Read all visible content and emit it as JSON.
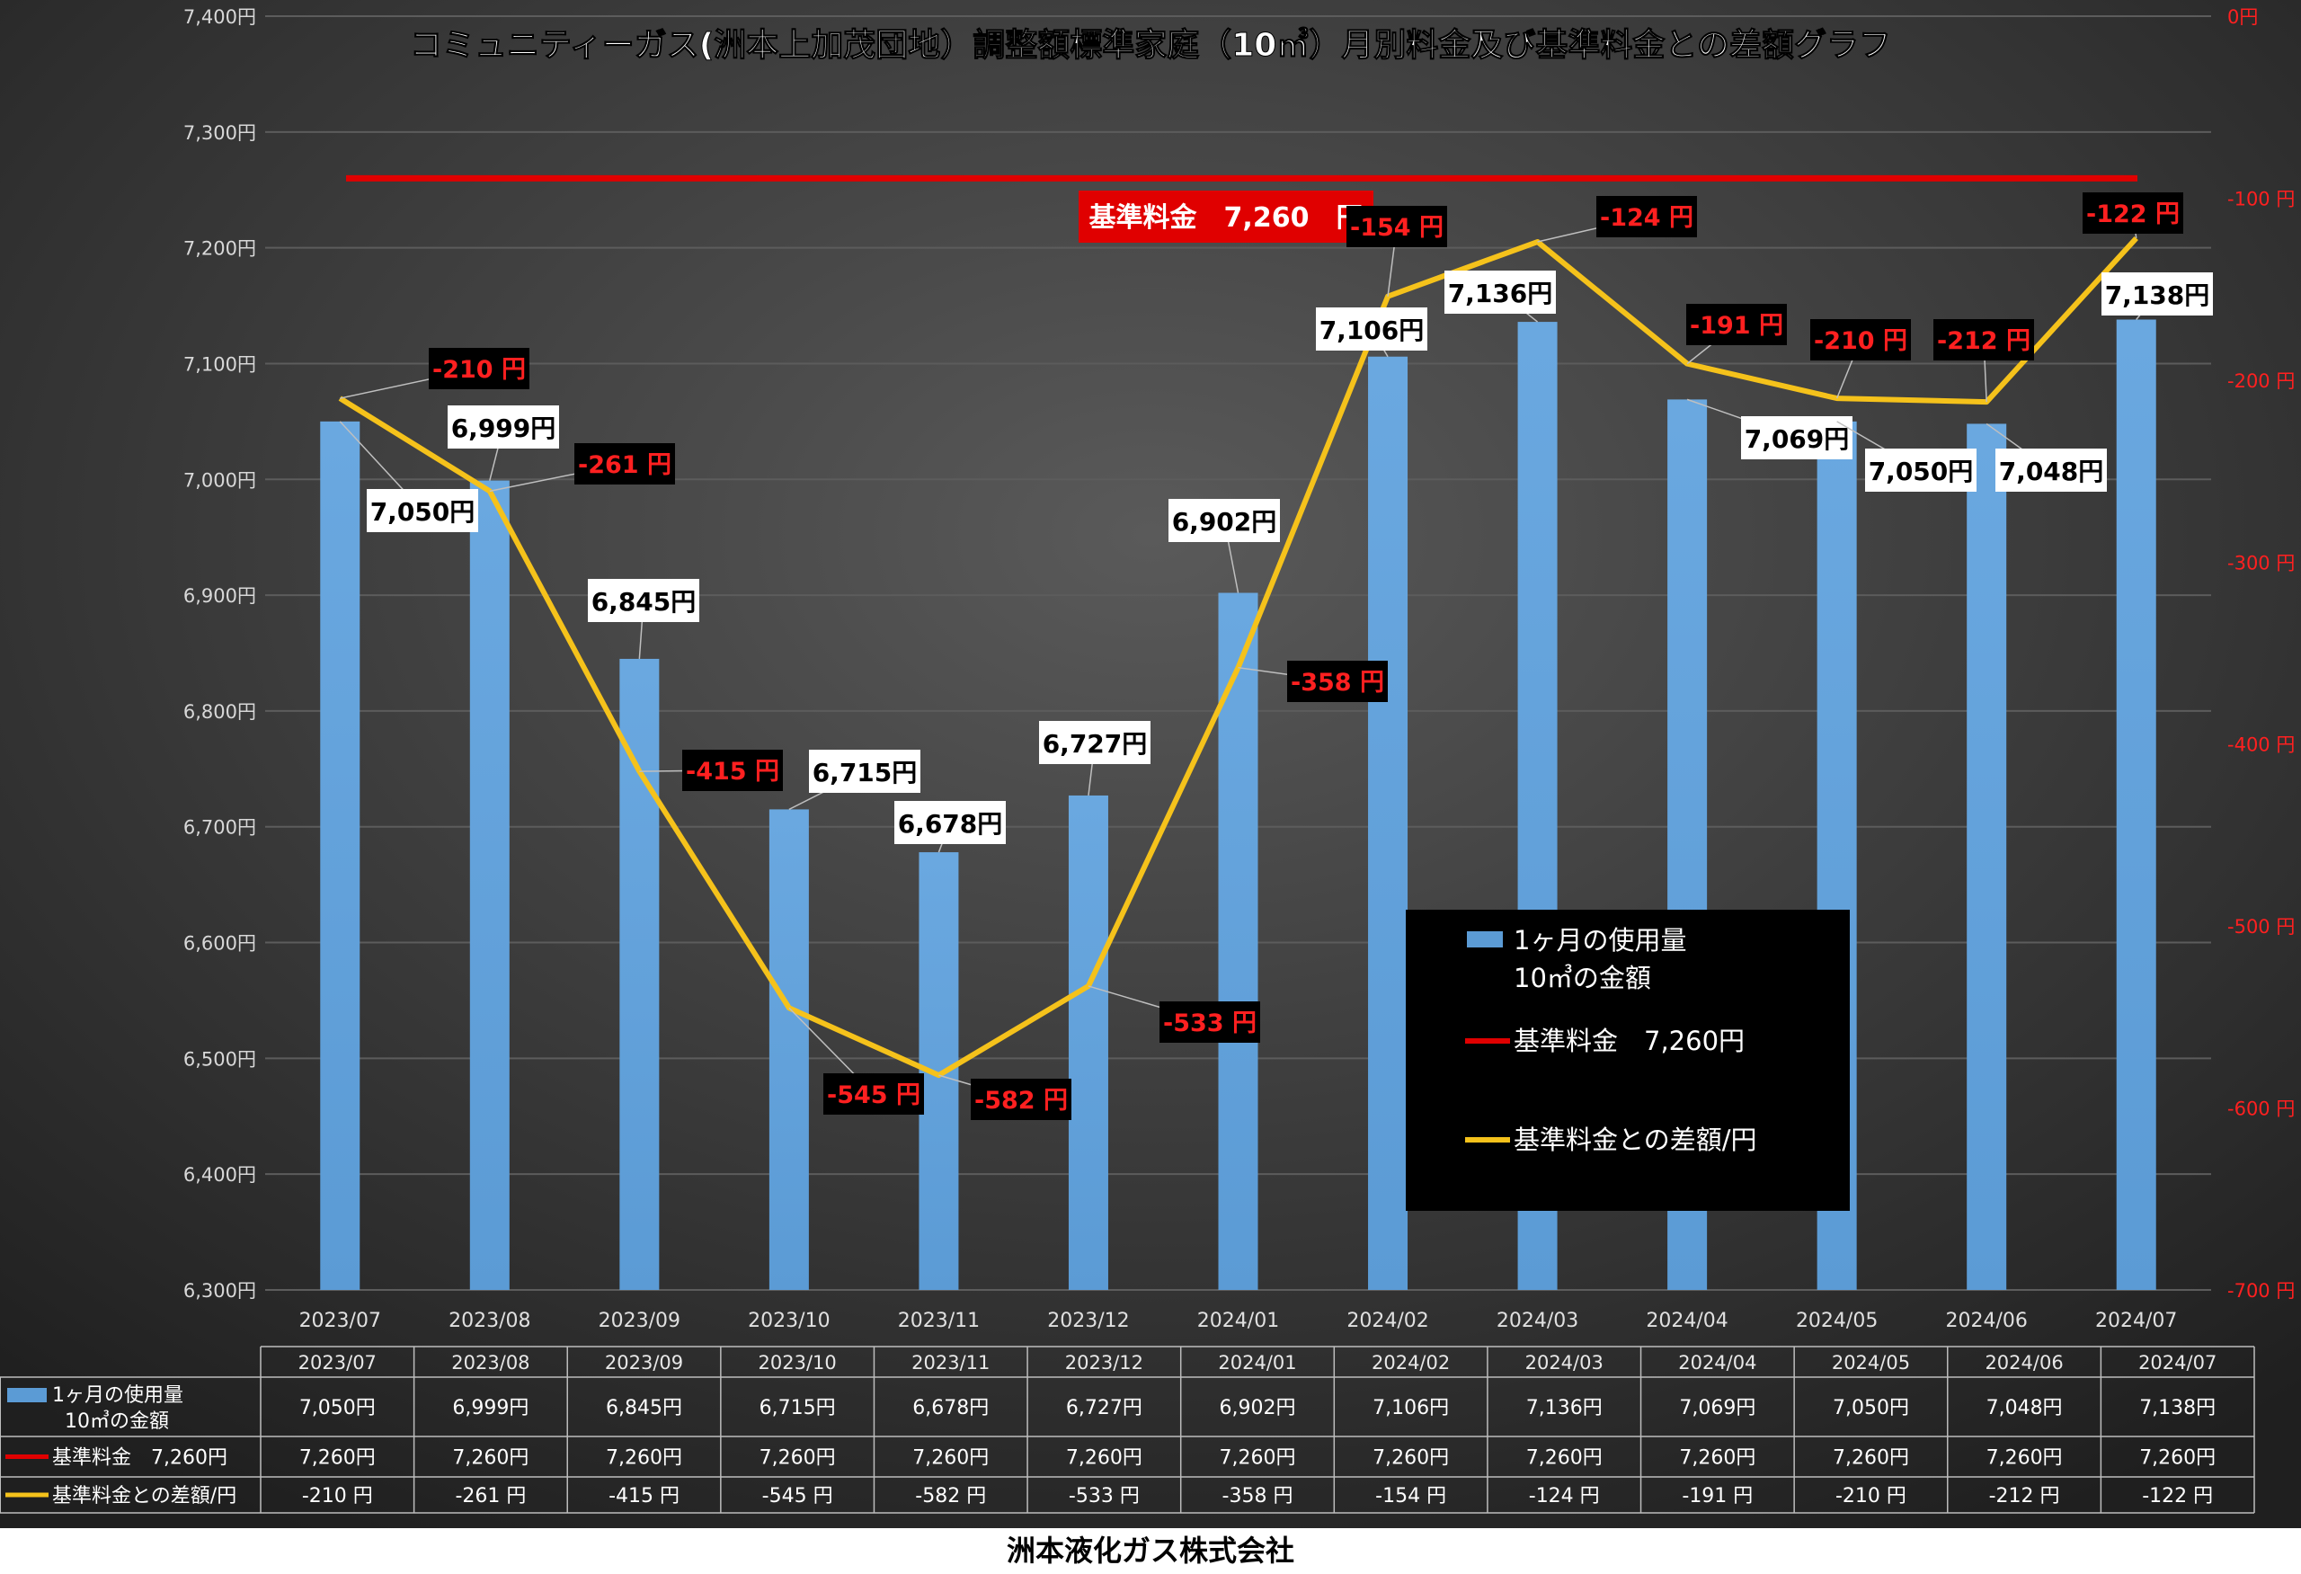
{
  "title": "コミュニティーガス(洲本上加茂団地）調整額標準家庭（10㎥）月別料金及び基準料金との差額グラフ",
  "company": "洲本液化ガス株式会社",
  "colors": {
    "bar": "#5b9bd5",
    "standard_line": "#e00000",
    "diff_line": "#f5c21b",
    "background": "#1f1f1f",
    "label_box": "#ffffff",
    "diff_label_box": "#000000",
    "diff_label_text": "#ff2020",
    "right_axis_text": "#ff2020"
  },
  "chart_data": {
    "type": "bar",
    "categories": [
      "2023/07",
      "2023/08",
      "2023/09",
      "2023/10",
      "2023/11",
      "2023/12",
      "2024/01",
      "2024/02",
      "2024/03",
      "2024/04",
      "2024/05",
      "2024/06",
      "2024/07"
    ],
    "series": [
      {
        "name": "1ヶ月の使用量\n10㎥の金額",
        "axis": "left",
        "type": "bar",
        "values": [
          7050,
          6999,
          6845,
          6715,
          6678,
          6727,
          6902,
          7106,
          7136,
          7069,
          7050,
          7048,
          7138
        ]
      },
      {
        "name": "基準料金　7,260円",
        "axis": "left",
        "type": "line",
        "values": [
          7260,
          7260,
          7260,
          7260,
          7260,
          7260,
          7260,
          7260,
          7260,
          7260,
          7260,
          7260,
          7260
        ]
      },
      {
        "name": "基準料金との差額/円",
        "axis": "right",
        "type": "line",
        "values": [
          -210,
          -261,
          -415,
          -545,
          -582,
          -533,
          -358,
          -154,
          -124,
          -191,
          -210,
          -212,
          -122
        ]
      }
    ],
    "bar_labels": [
      "7,050円",
      "6,999円",
      "6,845円",
      "6,715円",
      "6,678円",
      "6,727円",
      "6,902円",
      "7,106円",
      "7,136円",
      "7,069円",
      "7,050円",
      "7,048円",
      "7,138円"
    ],
    "diff_labels": [
      "-210 円",
      "-261 円",
      "-415 円",
      "-545 円",
      "-582 円",
      "-533 円",
      "-358 円",
      "-154 円",
      "-124 円",
      "-191 円",
      "-210 円",
      "-212 円",
      "-122 円"
    ],
    "standard_label": "基準料金　7,260　円",
    "y_left": {
      "min": 6300,
      "max": 7400,
      "step": 100,
      "ticks": [
        "6,300円",
        "6,400円",
        "6,500円",
        "6,600円",
        "6,700円",
        "6,800円",
        "6,900円",
        "7,000円",
        "7,100円",
        "7,200円",
        "7,300円",
        "7,400円"
      ]
    },
    "y_right": {
      "min": -700,
      "max": 0,
      "step": 100,
      "ticks": [
        "-700 円",
        "-600 円",
        "-500 円",
        "-400 円",
        "-300 円",
        "-200 円",
        "-100 円",
        "0円"
      ]
    },
    "legend": [
      "1ヶ月の使用量\n10㎥の金額",
      "基準料金　7,260円",
      "基準料金との差額/円"
    ],
    "legend_position": "lower-right",
    "grid": true,
    "table": {
      "headers": [
        "2023/07",
        "2023/08",
        "2023/09",
        "2023/10",
        "2023/11",
        "2023/12",
        "2024/01",
        "2024/02",
        "2024/03",
        "2024/04",
        "2024/05",
        "2024/06",
        "2024/07"
      ],
      "rows": [
        {
          "label": "1ヶ月の使用量\n10㎥の金額",
          "cells": [
            "7,050円",
            "6,999円",
            "6,845円",
            "6,715円",
            "6,678円",
            "6,727円",
            "6,902円",
            "7,106円",
            "7,136円",
            "7,069円",
            "7,050円",
            "7,048円",
            "7,138円"
          ]
        },
        {
          "label": "基準料金　7,260円",
          "cells": [
            "7,260円",
            "7,260円",
            "7,260円",
            "7,260円",
            "7,260円",
            "7,260円",
            "7,260円",
            "7,260円",
            "7,260円",
            "7,260円",
            "7,260円",
            "7,260円",
            "7,260円"
          ]
        },
        {
          "label": "基準料金との差額/円",
          "cells": [
            "-210 円",
            "-261 円",
            "-415 円",
            "-545 円",
            "-582 円",
            "-533 円",
            "-358 円",
            "-154 円",
            "-124 円",
            "-191 円",
            "-210 円",
            "-212 円",
            "-122 円"
          ]
        }
      ]
    }
  }
}
